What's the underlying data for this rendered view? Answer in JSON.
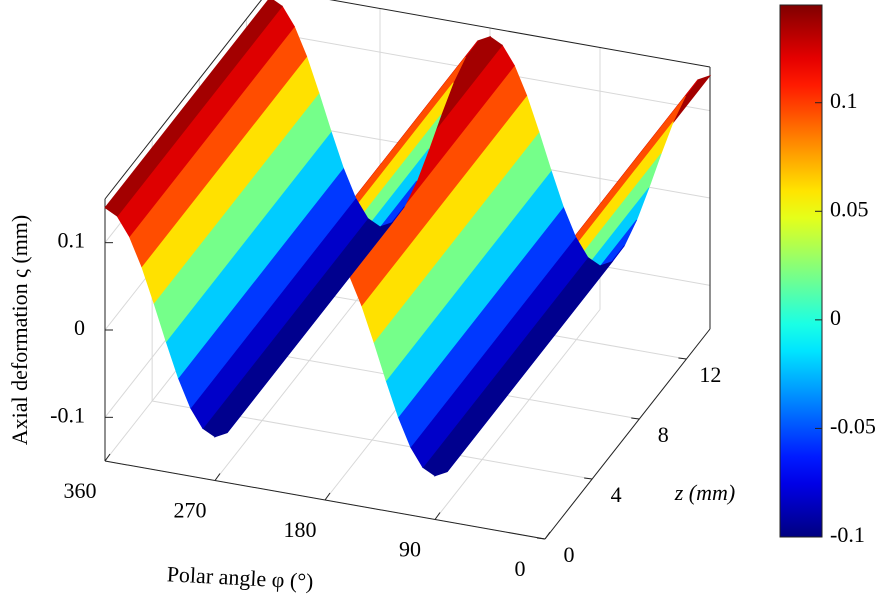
{
  "chart_data": {
    "type": "surface",
    "x_label": "Polar angle φ (°)",
    "y_label": "z (mm)",
    "z_label": "Axial deformation ς (mm)",
    "x": [
      0,
      10,
      20,
      30,
      40,
      50,
      60,
      70,
      80,
      90,
      100,
      110,
      120,
      130,
      140,
      150,
      160,
      170,
      180,
      190,
      200,
      210,
      220,
      230,
      240,
      250,
      260,
      270,
      280,
      290,
      300,
      310,
      320,
      330,
      340,
      350,
      360
    ],
    "series": [
      {
        "name": "Axial deformation",
        "values": [
          0.14,
          0.1328,
          0.1119,
          0.08,
          0.0408,
          -0.0008,
          -0.04,
          -0.0719,
          -0.0928,
          -0.1,
          -0.0928,
          -0.0719,
          -0.04,
          -0.0008,
          0.0408,
          0.08,
          0.1119,
          0.1328,
          0.14,
          0.1328,
          0.1119,
          0.08,
          0.0408,
          -0.0008,
          -0.04,
          -0.0719,
          -0.0928,
          -0.1,
          -0.0928,
          -0.0719,
          -0.04,
          -0.0008,
          0.0408,
          0.08,
          0.1119,
          0.1328,
          0.14
        ]
      }
    ],
    "xlim": [
      0,
      360
    ],
    "xticks": [
      0,
      90,
      180,
      270,
      360
    ],
    "ylim": [
      0,
      14
    ],
    "yticks": [
      0,
      4,
      8,
      12
    ],
    "zlim": [
      -0.15,
      0.15
    ],
    "zticks": [
      -0.1,
      0,
      0.1
    ],
    "colormap": "jet",
    "clim": [
      -0.1,
      0.145
    ],
    "colorbar_ticks": [
      -0.1,
      -0.05,
      0,
      0.05,
      0.1
    ],
    "grid": true
  }
}
